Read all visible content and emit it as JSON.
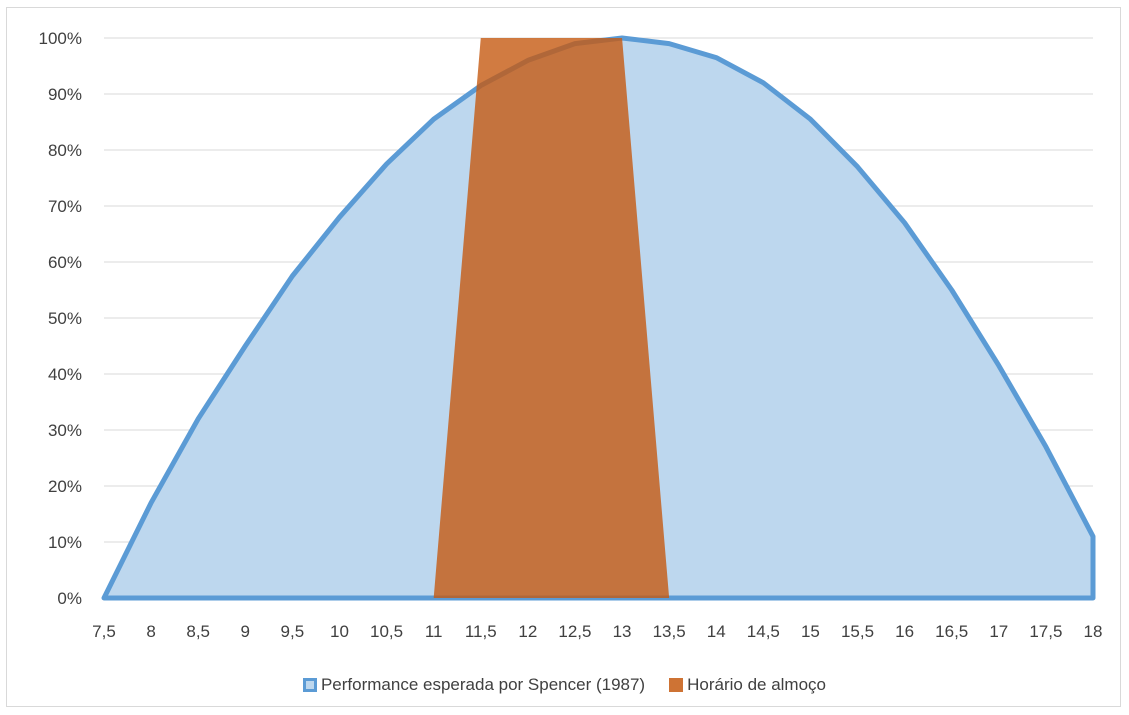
{
  "chart_data": {
    "type": "area",
    "title": "",
    "xlabel": "",
    "ylabel": "",
    "x": [
      7.5,
      8,
      8.5,
      9,
      9.5,
      10,
      10.5,
      11,
      11.5,
      12,
      12.5,
      13,
      13.5,
      14,
      14.5,
      15,
      15.5,
      16,
      16.5,
      17,
      17.5,
      18
    ],
    "x_tick_labels": [
      "7,5",
      "8",
      "8,5",
      "9",
      "9,5",
      "10",
      "10,5",
      "11",
      "11,5",
      "12",
      "12,5",
      "13",
      "13,5",
      "14",
      "14,5",
      "15",
      "15,5",
      "16",
      "16,5",
      "17",
      "17,5",
      "18"
    ],
    "y_tick_labels": [
      "0%",
      "10%",
      "20%",
      "30%",
      "40%",
      "50%",
      "60%",
      "70%",
      "80%",
      "90%",
      "100%"
    ],
    "ylim": [
      0,
      1
    ],
    "grid": true,
    "legend_position": "bottom",
    "series": [
      {
        "name": "Performance esperada por Spencer (1987)",
        "color_fill": "#bdd7ee",
        "color_line": "#5b9bd5",
        "values": [
          0.0,
          0.17,
          0.32,
          0.45,
          0.575,
          0.68,
          0.775,
          0.855,
          0.915,
          0.96,
          0.99,
          1.0,
          0.99,
          0.965,
          0.92,
          0.855,
          0.77,
          0.67,
          0.55,
          0.415,
          0.27,
          0.11
        ]
      },
      {
        "name": "Horário de almoço",
        "color_fill": "#c55a11",
        "opacity": 0.8,
        "values": [
          0,
          0,
          0,
          0,
          0,
          0,
          0,
          0,
          1,
          1,
          1,
          1,
          0,
          0,
          0,
          0,
          0,
          0,
          0,
          0,
          0,
          0
        ]
      }
    ]
  }
}
